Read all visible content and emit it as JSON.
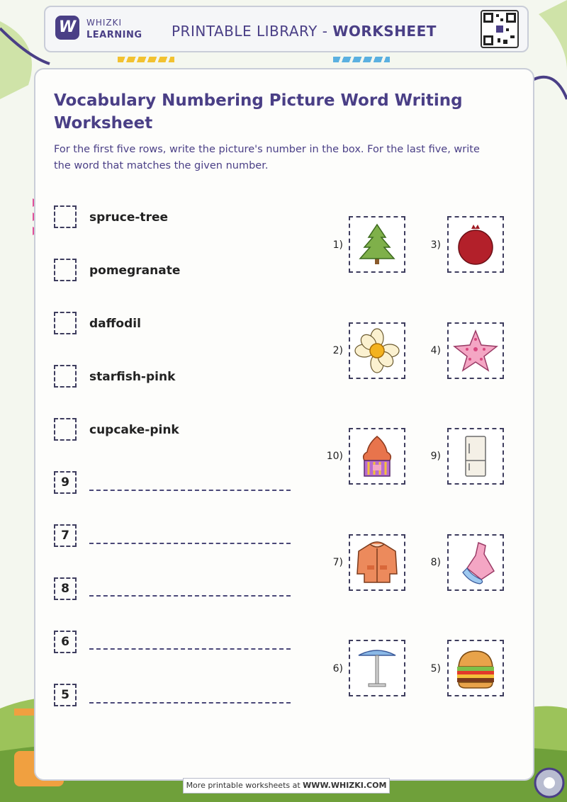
{
  "header": {
    "brand_line1": "WHIZKI",
    "brand_line2": "LEARNING",
    "logo_letter": "W",
    "title_prefix": "PRINTABLE LIBRARY - ",
    "title_bold": "WORKSHEET"
  },
  "worksheet": {
    "title": "Vocabulary Numbering Picture Word Writing Worksheet",
    "instructions": "For the first five rows, write the picture's number in the box. For the last five, write the word that matches the given number."
  },
  "word_rows": [
    {
      "word": "spruce-tree"
    },
    {
      "word": "pomegranate"
    },
    {
      "word": "daffodil"
    },
    {
      "word": "starfish-pink"
    },
    {
      "word": "cupcake-pink"
    }
  ],
  "number_rows": [
    {
      "number": "9"
    },
    {
      "number": "7"
    },
    {
      "number": "8"
    },
    {
      "number": "6"
    },
    {
      "number": "5"
    }
  ],
  "pictures": [
    {
      "label": "1)",
      "icon": "spruce-tree-icon"
    },
    {
      "label": "3)",
      "icon": "pomegranate-icon"
    },
    {
      "label": "2)",
      "icon": "daffodil-icon"
    },
    {
      "label": "4)",
      "icon": "starfish-icon"
    },
    {
      "label": "10)",
      "icon": "cupcake-icon"
    },
    {
      "label": "9)",
      "icon": "refrigerator-icon"
    },
    {
      "label": "7)",
      "icon": "jacket-icon"
    },
    {
      "label": "8)",
      "icon": "dress-icon"
    },
    {
      "label": "6)",
      "icon": "patio-table-icon"
    },
    {
      "label": "5)",
      "icon": "burger-icon"
    }
  ],
  "footer": {
    "prefix": "More printable worksheets at ",
    "site": "WWW.WHIZKI.COM"
  },
  "colors": {
    "accent": "#4a3f86",
    "background": "#f4f7ef"
  }
}
